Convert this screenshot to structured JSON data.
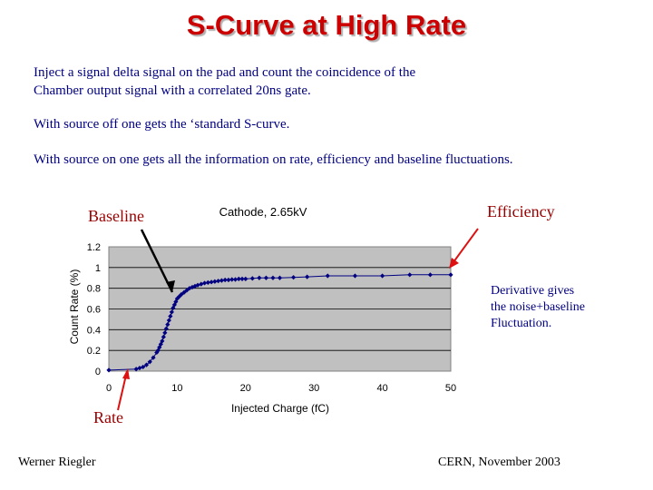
{
  "slide": {
    "title": "S-Curve at High Rate",
    "paragraph_1_line_1": "Inject a signal delta signal on the pad and count the coincidence of the",
    "paragraph_1_line_2": "Chamber output signal with a correlated 20ns gate.",
    "paragraph_2": "With source off one gets the ‘standard S-curve.",
    "paragraph_3": "With source on one gets all the information on rate, efficiency and baseline fluctuations."
  },
  "annotations": {
    "baseline": "Baseline",
    "efficiency": "Efficiency",
    "rate": "Rate",
    "derivative_line_1": "Derivative gives",
    "derivative_line_2": "the noise+baseline",
    "derivative_line_3": "Fluctuation."
  },
  "footer": {
    "author": "Werner Riegler",
    "venue": "CERN, November 2003"
  },
  "colors": {
    "title": "#cc0000",
    "body_text": "#000080",
    "annotation": "#990000",
    "arrow_red": "#dd1111",
    "plot_background": "#c0c0c0",
    "series_marker": "#000080"
  },
  "chart_data": {
    "type": "scatter",
    "title": "Cathode, 2.65kV",
    "xlabel": "Injected Charge (fC)",
    "ylabel": "Count Rate (%)",
    "xlim": [
      0,
      50
    ],
    "ylim": [
      0,
      1.2
    ],
    "x_ticks": [
      "0",
      "10",
      "20",
      "30",
      "40",
      "50"
    ],
    "y_ticks": [
      "0",
      "0.2",
      "0.4",
      "0.6",
      "0.8",
      "1",
      "1.2"
    ],
    "grid": "horizontal",
    "series": [
      {
        "x": [
          0,
          4,
          4.5,
          5,
          5.5,
          6,
          6.5,
          7,
          7.2,
          7.4,
          7.6,
          7.8,
          8,
          8.2,
          8.4,
          8.6,
          8.8,
          9,
          9.2,
          9.4,
          9.6,
          9.8,
          10,
          10.3,
          10.6,
          11,
          11.4,
          11.8,
          12.2,
          12.6,
          13,
          13.5,
          14,
          14.5,
          15,
          15.5,
          16,
          16.5,
          17,
          17.5,
          18,
          18.5,
          19,
          19.5,
          20,
          21,
          22,
          23,
          24,
          25,
          27,
          29,
          32,
          36,
          40,
          44,
          47,
          50
        ],
        "y": [
          0.01,
          0.02,
          0.03,
          0.04,
          0.06,
          0.09,
          0.13,
          0.18,
          0.2,
          0.23,
          0.26,
          0.29,
          0.33,
          0.37,
          0.41,
          0.45,
          0.49,
          0.53,
          0.57,
          0.61,
          0.64,
          0.67,
          0.7,
          0.72,
          0.74,
          0.76,
          0.78,
          0.8,
          0.81,
          0.82,
          0.83,
          0.84,
          0.85,
          0.855,
          0.86,
          0.865,
          0.87,
          0.875,
          0.88,
          0.88,
          0.885,
          0.885,
          0.89,
          0.89,
          0.89,
          0.895,
          0.9,
          0.9,
          0.9,
          0.9,
          0.905,
          0.91,
          0.92,
          0.92,
          0.92,
          0.93,
          0.93,
          0.93
        ]
      }
    ]
  }
}
